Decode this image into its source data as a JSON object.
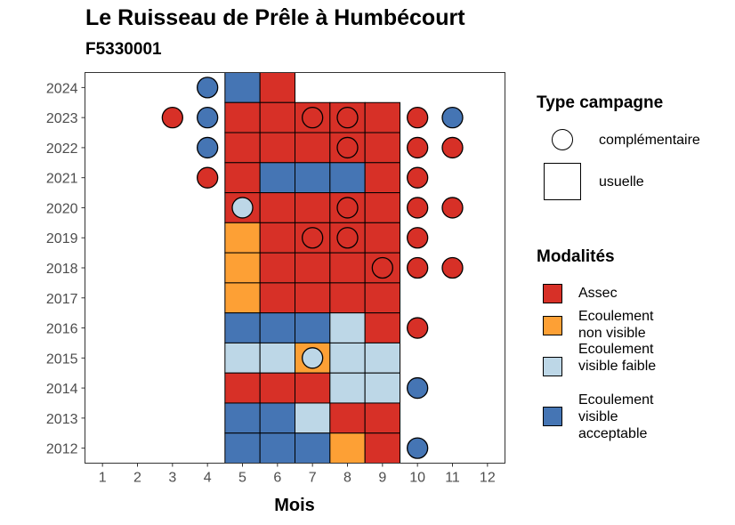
{
  "chart_data": {
    "type": "heatmap",
    "title": "Le Ruisseau de Prêle à Humbécourt",
    "subtitle": "F5330001",
    "xlabel": "Mois",
    "ylabel": "",
    "x_ticks": [
      "1",
      "2",
      "3",
      "4",
      "5",
      "6",
      "7",
      "8",
      "9",
      "10",
      "11",
      "12"
    ],
    "y_ticks": [
      "2012",
      "2013",
      "2014",
      "2015",
      "2016",
      "2017",
      "2018",
      "2019",
      "2020",
      "2021",
      "2022",
      "2023",
      "2024"
    ],
    "xlim": [
      0.5,
      12.5
    ],
    "ylim": [
      2011.5,
      2024.5
    ],
    "grid": false,
    "legend_position": "right",
    "colors": {
      "Assec": "#D73027",
      "Ecoulement non visible": "#FDA035",
      "Ecoulement visible faible": "#BDD7E7",
      "Ecoulement visible acceptable": "#4575B4"
    },
    "usuelle": [
      {
        "year": 2024,
        "month": 5,
        "modalite": "Ecoulement visible acceptable"
      },
      {
        "year": 2024,
        "month": 6,
        "modalite": "Assec"
      },
      {
        "year": 2023,
        "month": 5,
        "modalite": "Assec"
      },
      {
        "year": 2023,
        "month": 6,
        "modalite": "Assec"
      },
      {
        "year": 2023,
        "month": 7,
        "modalite": "Assec"
      },
      {
        "year": 2023,
        "month": 8,
        "modalite": "Assec"
      },
      {
        "year": 2023,
        "month": 9,
        "modalite": "Assec"
      },
      {
        "year": 2022,
        "month": 5,
        "modalite": "Assec"
      },
      {
        "year": 2022,
        "month": 6,
        "modalite": "Assec"
      },
      {
        "year": 2022,
        "month": 7,
        "modalite": "Assec"
      },
      {
        "year": 2022,
        "month": 8,
        "modalite": "Assec"
      },
      {
        "year": 2022,
        "month": 9,
        "modalite": "Assec"
      },
      {
        "year": 2021,
        "month": 5,
        "modalite": "Assec"
      },
      {
        "year": 2021,
        "month": 6,
        "modalite": "Ecoulement visible acceptable"
      },
      {
        "year": 2021,
        "month": 7,
        "modalite": "Ecoulement visible acceptable"
      },
      {
        "year": 2021,
        "month": 8,
        "modalite": "Ecoulement visible acceptable"
      },
      {
        "year": 2021,
        "month": 9,
        "modalite": "Assec"
      },
      {
        "year": 2020,
        "month": 5,
        "modalite": "Assec"
      },
      {
        "year": 2020,
        "month": 6,
        "modalite": "Assec"
      },
      {
        "year": 2020,
        "month": 7,
        "modalite": "Assec"
      },
      {
        "year": 2020,
        "month": 8,
        "modalite": "Assec"
      },
      {
        "year": 2020,
        "month": 9,
        "modalite": "Assec"
      },
      {
        "year": 2019,
        "month": 5,
        "modalite": "Ecoulement non visible"
      },
      {
        "year": 2019,
        "month": 6,
        "modalite": "Assec"
      },
      {
        "year": 2019,
        "month": 7,
        "modalite": "Assec"
      },
      {
        "year": 2019,
        "month": 8,
        "modalite": "Assec"
      },
      {
        "year": 2019,
        "month": 9,
        "modalite": "Assec"
      },
      {
        "year": 2018,
        "month": 5,
        "modalite": "Ecoulement non visible"
      },
      {
        "year": 2018,
        "month": 6,
        "modalite": "Assec"
      },
      {
        "year": 2018,
        "month": 7,
        "modalite": "Assec"
      },
      {
        "year": 2018,
        "month": 8,
        "modalite": "Assec"
      },
      {
        "year": 2018,
        "month": 9,
        "modalite": "Assec"
      },
      {
        "year": 2017,
        "month": 5,
        "modalite": "Ecoulement non visible"
      },
      {
        "year": 2017,
        "month": 6,
        "modalite": "Assec"
      },
      {
        "year": 2017,
        "month": 7,
        "modalite": "Assec"
      },
      {
        "year": 2017,
        "month": 8,
        "modalite": "Assec"
      },
      {
        "year": 2017,
        "month": 9,
        "modalite": "Assec"
      },
      {
        "year": 2016,
        "month": 5,
        "modalite": "Ecoulement visible acceptable"
      },
      {
        "year": 2016,
        "month": 6,
        "modalite": "Ecoulement visible acceptable"
      },
      {
        "year": 2016,
        "month": 7,
        "modalite": "Ecoulement visible acceptable"
      },
      {
        "year": 2016,
        "month": 8,
        "modalite": "Ecoulement visible faible"
      },
      {
        "year": 2016,
        "month": 9,
        "modalite": "Assec"
      },
      {
        "year": 2015,
        "month": 5,
        "modalite": "Ecoulement visible faible"
      },
      {
        "year": 2015,
        "month": 6,
        "modalite": "Ecoulement visible faible"
      },
      {
        "year": 2015,
        "month": 7,
        "modalite": "Ecoulement non visible"
      },
      {
        "year": 2015,
        "month": 8,
        "modalite": "Ecoulement visible faible"
      },
      {
        "year": 2015,
        "month": 9,
        "modalite": "Ecoulement visible faible"
      },
      {
        "year": 2014,
        "month": 5,
        "modalite": "Assec"
      },
      {
        "year": 2014,
        "month": 6,
        "modalite": "Assec"
      },
      {
        "year": 2014,
        "month": 7,
        "modalite": "Assec"
      },
      {
        "year": 2014,
        "month": 8,
        "modalite": "Ecoulement visible faible"
      },
      {
        "year": 2014,
        "month": 9,
        "modalite": "Ecoulement visible faible"
      },
      {
        "year": 2013,
        "month": 5,
        "modalite": "Ecoulement visible acceptable"
      },
      {
        "year": 2013,
        "month": 6,
        "modalite": "Ecoulement visible acceptable"
      },
      {
        "year": 2013,
        "month": 7,
        "modalite": "Ecoulement visible faible"
      },
      {
        "year": 2013,
        "month": 8,
        "modalite": "Assec"
      },
      {
        "year": 2013,
        "month": 9,
        "modalite": "Assec"
      },
      {
        "year": 2012,
        "month": 5,
        "modalite": "Ecoulement visible acceptable"
      },
      {
        "year": 2012,
        "month": 6,
        "modalite": "Ecoulement visible acceptable"
      },
      {
        "year": 2012,
        "month": 7,
        "modalite": "Ecoulement visible acceptable"
      },
      {
        "year": 2012,
        "month": 8,
        "modalite": "Ecoulement non visible"
      },
      {
        "year": 2012,
        "month": 9,
        "modalite": "Assec"
      }
    ],
    "complementaire": [
      {
        "year": 2024,
        "month": 4,
        "modalite": "Ecoulement visible acceptable"
      },
      {
        "year": 2023,
        "month": 3,
        "modalite": "Assec"
      },
      {
        "year": 2023,
        "month": 4,
        "modalite": "Ecoulement visible acceptable"
      },
      {
        "year": 2023,
        "month": 7,
        "modalite": "Assec"
      },
      {
        "year": 2023,
        "month": 8,
        "modalite": "Assec"
      },
      {
        "year": 2023,
        "month": 10,
        "modalite": "Assec"
      },
      {
        "year": 2023,
        "month": 11,
        "modalite": "Ecoulement visible acceptable"
      },
      {
        "year": 2022,
        "month": 4,
        "modalite": "Ecoulement visible acceptable"
      },
      {
        "year": 2022,
        "month": 8,
        "modalite": "Assec"
      },
      {
        "year": 2022,
        "month": 10,
        "modalite": "Assec"
      },
      {
        "year": 2022,
        "month": 11,
        "modalite": "Assec"
      },
      {
        "year": 2021,
        "month": 4,
        "modalite": "Assec"
      },
      {
        "year": 2021,
        "month": 10,
        "modalite": "Assec"
      },
      {
        "year": 2020,
        "month": 5,
        "modalite": "Ecoulement visible faible"
      },
      {
        "year": 2020,
        "month": 8,
        "modalite": "Assec"
      },
      {
        "year": 2020,
        "month": 10,
        "modalite": "Assec"
      },
      {
        "year": 2020,
        "month": 11,
        "modalite": "Assec"
      },
      {
        "year": 2019,
        "month": 7,
        "modalite": "Assec"
      },
      {
        "year": 2019,
        "month": 8,
        "modalite": "Assec"
      },
      {
        "year": 2019,
        "month": 10,
        "modalite": "Assec"
      },
      {
        "year": 2018,
        "month": 9,
        "modalite": "Assec"
      },
      {
        "year": 2018,
        "month": 10,
        "modalite": "Assec"
      },
      {
        "year": 2018,
        "month": 11,
        "modalite": "Assec"
      },
      {
        "year": 2016,
        "month": 10,
        "modalite": "Assec"
      },
      {
        "year": 2015,
        "month": 7,
        "modalite": "Ecoulement visible faible"
      },
      {
        "year": 2014,
        "month": 10,
        "modalite": "Ecoulement visible acceptable"
      },
      {
        "year": 2012,
        "month": 10,
        "modalite": "Ecoulement visible acceptable"
      }
    ]
  },
  "legend": {
    "type_title": "Type campagne",
    "type_items": [
      {
        "shape": "circle",
        "label": "complémentaire"
      },
      {
        "shape": "square",
        "label": "usuelle"
      }
    ],
    "modalites_title": "Modalités",
    "modalites_items": [
      {
        "label": "Assec",
        "color": "#D73027"
      },
      {
        "label": "Ecoulement non visible",
        "color": "#FDA035"
      },
      {
        "label": "Ecoulement visible faible",
        "color": "#BDD7E7"
      },
      {
        "label": "Ecoulement visible acceptable",
        "color": "#4575B4"
      }
    ]
  }
}
